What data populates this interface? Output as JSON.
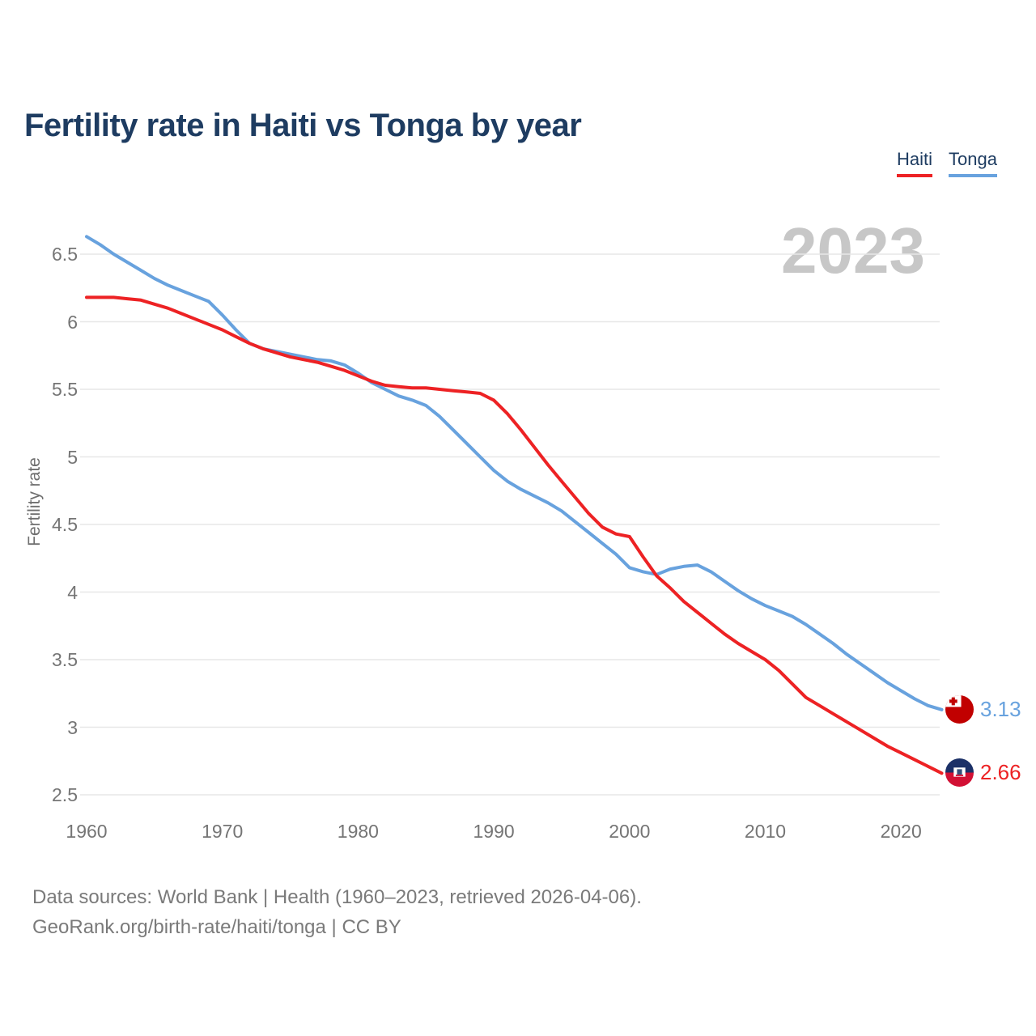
{
  "title": "Fertility rate in Haiti vs Tonga by year",
  "watermark": "2023",
  "legend": [
    {
      "label": "Haiti",
      "color": "#ed2224"
    },
    {
      "label": "Tonga",
      "color": "#68a2de"
    }
  ],
  "end_labels": [
    {
      "series": "Tonga",
      "value": "3.13",
      "color": "#68a2de",
      "flag": "tonga-flag"
    },
    {
      "series": "Haiti",
      "value": "2.66",
      "color": "#ed2224",
      "flag": "haiti-flag"
    }
  ],
  "footer": {
    "line1": "Data sources: World Bank | Health (1960–2023, retrieved 2026-04-06).",
    "line2": "GeoRank.org/birth-rate/haiti/tonga | CC BY"
  },
  "chart_data": {
    "type": "line",
    "title": "Fertility rate in Haiti vs Tonga by year",
    "xlabel": "",
    "ylabel": "Fertility rate",
    "x_start": 1960,
    "x_end": 2023,
    "xlim": [
      1960,
      2023
    ],
    "ylim": [
      2.5,
      6.5
    ],
    "grid": "horizontal",
    "legend_position": "top-right",
    "y_ticks": [
      6.5,
      6,
      5.5,
      5,
      4.5,
      4,
      3.5,
      3,
      2.5
    ],
    "x_ticks": [
      1960,
      1970,
      1980,
      1990,
      2000,
      2010,
      2020
    ],
    "series": [
      {
        "name": "Tonga",
        "color": "#68a2de",
        "final_value": 3.13,
        "values": [
          6.63,
          6.57,
          6.5,
          6.44,
          6.38,
          6.32,
          6.27,
          6.23,
          6.19,
          6.15,
          6.05,
          5.94,
          5.84,
          5.8,
          5.78,
          5.76,
          5.74,
          5.72,
          5.71,
          5.68,
          5.62,
          5.55,
          5.5,
          5.45,
          5.42,
          5.38,
          5.3,
          5.2,
          5.1,
          5.0,
          4.9,
          4.82,
          4.76,
          4.71,
          4.66,
          4.6,
          4.52,
          4.44,
          4.36,
          4.28,
          4.18,
          4.15,
          4.13,
          4.17,
          4.19,
          4.2,
          4.15,
          4.08,
          4.01,
          3.95,
          3.9,
          3.86,
          3.82,
          3.76,
          3.69,
          3.62,
          3.54,
          3.47,
          3.4,
          3.33,
          3.27,
          3.21,
          3.16,
          3.13
        ]
      },
      {
        "name": "Haiti",
        "color": "#ed2224",
        "final_value": 2.66,
        "values": [
          6.18,
          6.18,
          6.18,
          6.17,
          6.16,
          6.13,
          6.1,
          6.06,
          6.02,
          5.98,
          5.94,
          5.89,
          5.84,
          5.8,
          5.77,
          5.74,
          5.72,
          5.7,
          5.67,
          5.64,
          5.6,
          5.56,
          5.53,
          5.52,
          5.51,
          5.51,
          5.5,
          5.49,
          5.48,
          5.47,
          5.42,
          5.32,
          5.2,
          5.07,
          4.94,
          4.82,
          4.7,
          4.58,
          4.48,
          4.43,
          4.41,
          4.26,
          4.12,
          4.03,
          3.93,
          3.85,
          3.77,
          3.69,
          3.62,
          3.56,
          3.5,
          3.42,
          3.32,
          3.22,
          3.16,
          3.1,
          3.04,
          2.98,
          2.92,
          2.86,
          2.81,
          2.76,
          2.71,
          2.66
        ]
      }
    ]
  }
}
